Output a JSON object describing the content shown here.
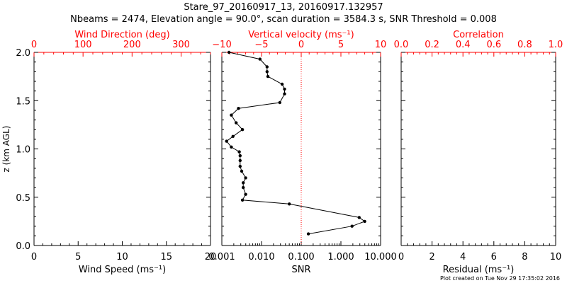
{
  "header": {
    "title": "Stare_97_20160917_13, 20160917.132957",
    "subtitle": "Nbeams = 2474, Elevation angle = 90.0°, scan duration = 3584.3 s, SNR Threshold = 0.008"
  },
  "footer": {
    "note": "Plot created on Tue Nov 29 17:35:02 2016"
  },
  "colors": {
    "axis": "#000000",
    "top_axis": "#ff0000",
    "zero_line": "#ff0000",
    "series": "#000000",
    "background": "#ffffff"
  },
  "chart_data": [
    {
      "type": "scatter",
      "panel": "left",
      "ylabel": "z (km AGL)",
      "ylim": [
        0,
        2.0
      ],
      "y_ticks": [
        "0.0",
        "0.5",
        "1.0",
        "1.5",
        "2.0"
      ],
      "xlabel_bottom": "Wind Speed (ms⁻¹)",
      "xlim_bottom": [
        0,
        20
      ],
      "x_ticks_bottom": [
        "0",
        "5",
        "10",
        "15",
        "20"
      ],
      "xlabel_top": "Wind Direction (deg)",
      "xlim_top": [
        0,
        360
      ],
      "x_ticks_top": [
        "0",
        "100",
        "200",
        "300"
      ],
      "series": []
    },
    {
      "type": "line",
      "panel": "middle",
      "ylim": [
        0,
        2.0
      ],
      "xlabel_bottom": "SNR",
      "x_scale_bottom": "log",
      "xlim_bottom": [
        0.001,
        10
      ],
      "x_ticks_bottom": [
        "0.001",
        "0.010",
        "0.100",
        "1.000",
        "10.000"
      ],
      "xlabel_top": "Vertical velocity (ms⁻¹)",
      "xlim_top": [
        -10,
        10
      ],
      "x_ticks_top": [
        "−10",
        "−5",
        "0",
        "5",
        "10"
      ],
      "reference_line": {
        "axis": "top",
        "value": 0,
        "style": "dotted"
      },
      "series": [
        {
          "axis": "top",
          "x": [
            0.9,
            6.4,
            8.0,
            7.3,
            -1.5,
            -7.4,
            -7.0,
            -7.3,
            -7.3,
            -7.0,
            -7.5,
            -7.7,
            -7.7,
            -7.7,
            -7.8,
            -8.8,
            -9.4,
            -8.6,
            -7.4,
            -8.2,
            -8.8,
            -7.9,
            -2.7,
            -2.1,
            -2.1,
            -2.4,
            -4.2,
            -4.3,
            -4.3,
            -5.2,
            -9.1
          ],
          "y": [
            0.12,
            0.2,
            0.25,
            0.29,
            0.43,
            0.47,
            0.53,
            0.6,
            0.65,
            0.7,
            0.77,
            0.82,
            0.88,
            0.93,
            0.97,
            1.02,
            1.08,
            1.13,
            1.2,
            1.27,
            1.35,
            1.42,
            1.48,
            1.57,
            1.62,
            1.67,
            1.75,
            1.8,
            1.85,
            1.93,
            2.0
          ]
        }
      ]
    },
    {
      "type": "scatter",
      "panel": "right",
      "ylim": [
        0,
        2.0
      ],
      "xlabel_bottom": "Residual (ms⁻¹)",
      "xlim_bottom": [
        0,
        10
      ],
      "x_ticks_bottom": [
        "0",
        "2",
        "4",
        "6",
        "8",
        "10"
      ],
      "xlabel_top": "Correlation",
      "xlim_top": [
        0,
        1
      ],
      "x_ticks_top": [
        "0.0",
        "0.2",
        "0.4",
        "0.6",
        "0.8",
        "1.0"
      ],
      "series": []
    }
  ]
}
